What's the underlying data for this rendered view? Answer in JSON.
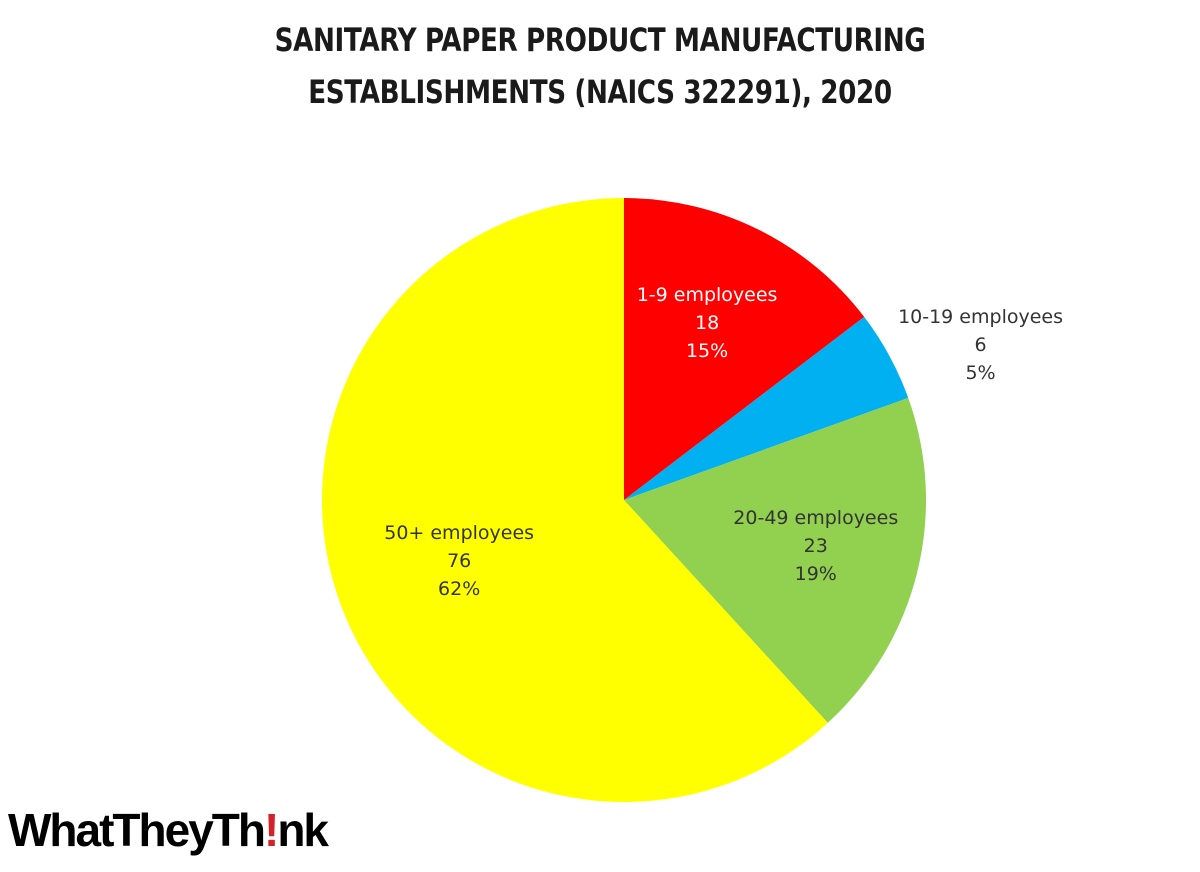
{
  "chart_data": {
    "type": "pie",
    "title_lines": [
      "SANITARY PAPER PRODUCT MANUFACTURING",
      "ESTABLISHMENTS (NAICS 322291), 2020"
    ],
    "slices": [
      {
        "label": "1-9 employees",
        "value": 18,
        "percent": "15%",
        "color": "#ff0000",
        "label_color": "#ffffff"
      },
      {
        "label": "10-19 employees",
        "value": 6,
        "percent": "5%",
        "color": "#00b0f0",
        "label_color": "#333333"
      },
      {
        "label": "20-49 employees",
        "value": 23,
        "percent": "19%",
        "color": "#92d050",
        "label_color": "#333333"
      },
      {
        "label": "50+ employees",
        "value": 76,
        "percent": "62%",
        "color": "#ffff00",
        "label_color": "#333333"
      }
    ],
    "start": "12 o'clock",
    "direction": "clockwise",
    "legend": "none"
  },
  "logo": {
    "text_before": "WhatTheyTh",
    "text_accent": "!",
    "text_after": "nk",
    "accent_color": "#d2232a"
  }
}
